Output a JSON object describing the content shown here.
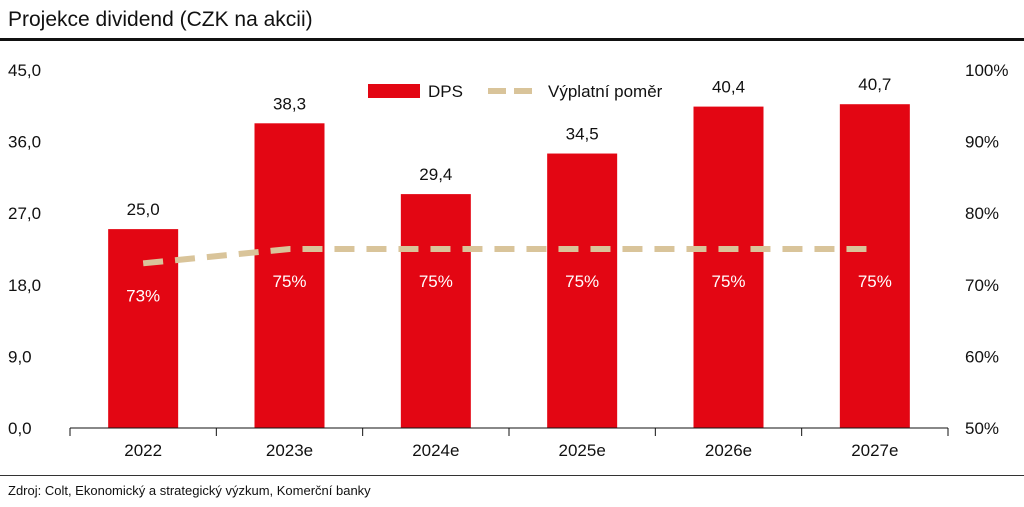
{
  "title": "Projekce dividend (CZK na akcii)",
  "source": "Zdroj: Colt, Ekonomický a strategický výzkum, Komerční banky",
  "chart_data": {
    "type": "bar",
    "categories": [
      "2022",
      "2023e",
      "2024e",
      "2025e",
      "2026e",
      "2027e"
    ],
    "series": [
      {
        "name": "DPS",
        "type": "bar",
        "axis": "left",
        "color": "#e30613",
        "values": [
          25.0,
          38.3,
          29.4,
          34.5,
          40.4,
          40.7
        ],
        "labels": [
          "25,0",
          "38,3",
          "29,4",
          "34,5",
          "40,4",
          "40,7"
        ]
      },
      {
        "name": "Výplatní poměr",
        "type": "line",
        "style": "dashed",
        "axis": "right",
        "color": "#d9c49a",
        "values": [
          73,
          75,
          75,
          75,
          75,
          75
        ],
        "labels": [
          "73%",
          "75%",
          "75%",
          "75%",
          "75%",
          "75%"
        ]
      }
    ],
    "y_left": {
      "min": 0,
      "max": 45,
      "ticks": [
        "0,0",
        "9,0",
        "18,0",
        "27,0",
        "36,0",
        "45,0"
      ]
    },
    "y_right": {
      "min": 50,
      "max": 100,
      "ticks": [
        "50%",
        "60%",
        "70%",
        "80%",
        "90%",
        "100%"
      ]
    },
    "grid": false,
    "legend": "top"
  }
}
